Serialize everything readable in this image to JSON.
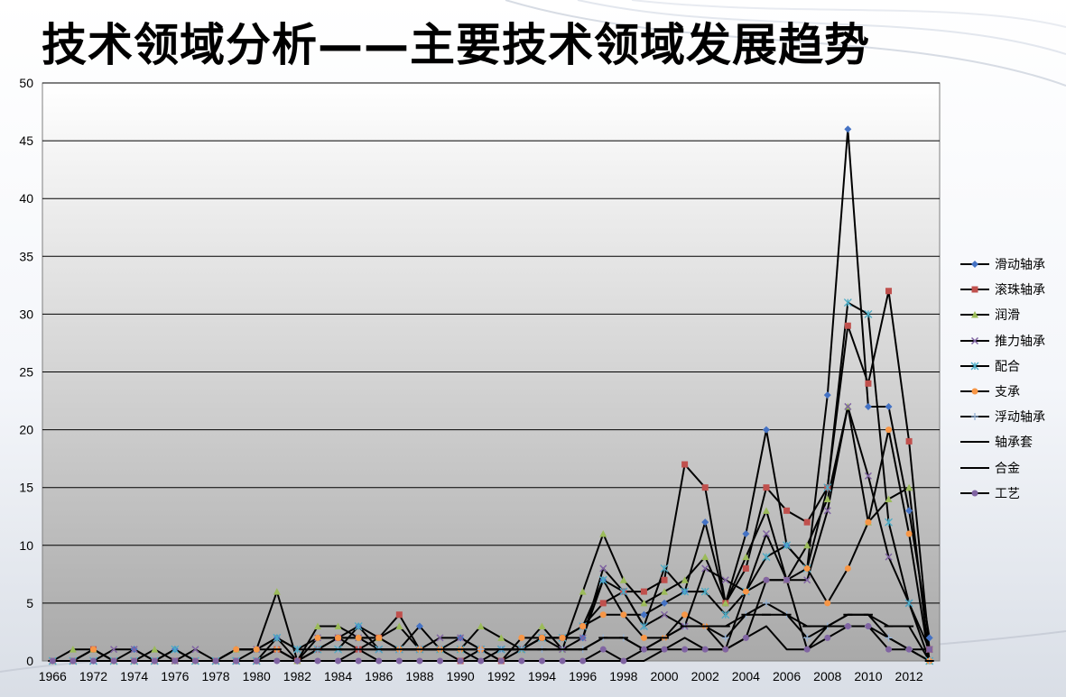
{
  "title": "技术领域分析——主要技术领域发展趋势",
  "chart_data": {
    "type": "line",
    "title": "",
    "xlabel": "",
    "ylabel": "",
    "ylim": [
      0,
      50
    ],
    "y_ticks": [
      "0",
      "5",
      "10",
      "15",
      "20",
      "25",
      "30",
      "35",
      "40",
      "45",
      "50"
    ],
    "x_tick_labels": [
      "1966",
      "1972",
      "1974",
      "1976",
      "1978",
      "1980",
      "1982",
      "1984",
      "1986",
      "1988",
      "1990",
      "1992",
      "1994",
      "1996",
      "1998",
      "2000",
      "2002",
      "2004",
      "2006",
      "2008",
      "2010",
      "2012"
    ],
    "categories": [
      "1966",
      "1971",
      "1972",
      "1973",
      "1974",
      "1975",
      "1976",
      "1977",
      "1978",
      "1979",
      "1980",
      "1981",
      "1982",
      "1983",
      "1984",
      "1985",
      "1986",
      "1987",
      "1988",
      "1989",
      "1990",
      "1991",
      "1992",
      "1993",
      "1994",
      "1995",
      "1996",
      "1997",
      "1998",
      "1999",
      "2000",
      "2001",
      "2002",
      "2003",
      "2004",
      "2005",
      "2006",
      "2007",
      "2008",
      "2009",
      "2010",
      "2011",
      "2012",
      "2013"
    ],
    "grid": true,
    "legend_position": "right",
    "series": [
      {
        "name": "滑动轴承",
        "color": "#4472c4",
        "marker": "diamond",
        "values": [
          0,
          0,
          1,
          0,
          1,
          0,
          1,
          0,
          0,
          1,
          1,
          2,
          0,
          1,
          2,
          3,
          2,
          1,
          3,
          1,
          2,
          1,
          1,
          1,
          2,
          2,
          2,
          7,
          4,
          4,
          5,
          6,
          12,
          5,
          11,
          20,
          10,
          8,
          23,
          46,
          22,
          22,
          13,
          2
        ]
      },
      {
        "name": "滚珠轴承",
        "color": "#c0504d",
        "marker": "square",
        "values": [
          0,
          0,
          1,
          0,
          0,
          0,
          0,
          0,
          0,
          0,
          0,
          1,
          0,
          1,
          2,
          1,
          2,
          4,
          1,
          1,
          0,
          1,
          0,
          1,
          2,
          2,
          3,
          5,
          6,
          6,
          7,
          17,
          15,
          5,
          8,
          15,
          13,
          12,
          15,
          29,
          24,
          32,
          19,
          1
        ]
      },
      {
        "name": "润滑",
        "color": "#9bbb59",
        "marker": "triangle",
        "values": [
          0,
          1,
          1,
          0,
          0,
          1,
          0,
          0,
          0,
          1,
          1,
          6,
          0,
          3,
          3,
          2,
          2,
          3,
          1,
          1,
          1,
          3,
          2,
          1,
          3,
          1,
          6,
          11,
          7,
          5,
          6,
          7,
          9,
          5,
          9,
          13,
          7,
          10,
          14,
          22,
          12,
          14,
          15,
          0
        ]
      },
      {
        "name": "推力轴承",
        "color": "#8064a2",
        "marker": "x",
        "values": [
          0,
          0,
          0,
          1,
          1,
          0,
          0,
          1,
          0,
          0,
          1,
          2,
          1,
          2,
          2,
          2,
          1,
          1,
          1,
          2,
          2,
          1,
          1,
          1,
          2,
          1,
          2,
          8,
          6,
          3,
          4,
          3,
          8,
          7,
          6,
          11,
          7,
          7,
          13,
          22,
          16,
          9,
          5,
          1
        ]
      },
      {
        "name": "配合",
        "color": "#4bacc6",
        "marker": "star",
        "values": [
          0,
          0,
          0,
          0,
          0,
          0,
          1,
          0,
          0,
          0,
          0,
          2,
          1,
          1,
          1,
          3,
          1,
          1,
          1,
          1,
          1,
          1,
          1,
          1,
          2,
          2,
          3,
          7,
          6,
          3,
          8,
          6,
          6,
          4,
          6,
          9,
          10,
          8,
          15,
          31,
          30,
          12,
          5,
          0
        ]
      },
      {
        "name": "支承",
        "color": "#f79646",
        "marker": "circle",
        "values": [
          0,
          0,
          1,
          0,
          0,
          0,
          0,
          0,
          0,
          1,
          1,
          1,
          0,
          2,
          2,
          2,
          2,
          1,
          1,
          1,
          1,
          1,
          0,
          2,
          2,
          2,
          3,
          4,
          4,
          2,
          2,
          4,
          3,
          1,
          6,
          7,
          7,
          8,
          5,
          8,
          12,
          20,
          11,
          0
        ]
      },
      {
        "name": "浮动轴承",
        "color": "#95b3d7",
        "marker": "plus",
        "values": [
          0,
          0,
          0,
          0,
          0,
          0,
          0,
          0,
          0,
          0,
          0,
          1,
          0,
          1,
          1,
          1,
          1,
          1,
          1,
          1,
          1,
          1,
          1,
          1,
          1,
          1,
          1,
          2,
          2,
          1,
          2,
          3,
          3,
          2,
          4,
          5,
          4,
          2,
          3,
          3,
          3,
          2,
          1,
          0
        ]
      },
      {
        "name": "轴承套",
        "color": "#000000",
        "marker": "dash",
        "values": [
          0,
          0,
          0,
          0,
          0,
          0,
          0,
          0,
          0,
          0,
          0,
          1,
          0,
          1,
          1,
          1,
          1,
          1,
          1,
          1,
          1,
          0,
          1,
          1,
          1,
          1,
          1,
          2,
          2,
          1,
          2,
          3,
          3,
          3,
          4,
          4,
          4,
          3,
          3,
          4,
          4,
          3,
          3,
          0
        ]
      },
      {
        "name": "合金",
        "color": "#000000",
        "marker": "none",
        "values": [
          0,
          0,
          0,
          0,
          0,
          0,
          0,
          0,
          0,
          0,
          0,
          0,
          0,
          0,
          0,
          1,
          0,
          0,
          0,
          0,
          0,
          0,
          0,
          0,
          0,
          0,
          0,
          0,
          0,
          0,
          1,
          2,
          1,
          1,
          2,
          3,
          1,
          1,
          3,
          4,
          4,
          2,
          1,
          0
        ]
      },
      {
        "name": "工艺",
        "color": "#8064a2",
        "marker": "circle",
        "values": [
          0,
          0,
          0,
          0,
          0,
          0,
          0,
          0,
          0,
          0,
          0,
          0,
          0,
          0,
          0,
          0,
          0,
          0,
          0,
          0,
          0,
          0,
          0,
          0,
          0,
          0,
          0,
          1,
          0,
          1,
          1,
          1,
          1,
          1,
          2,
          7,
          7,
          1,
          2,
          3,
          3,
          1,
          1,
          1
        ]
      }
    ]
  }
}
